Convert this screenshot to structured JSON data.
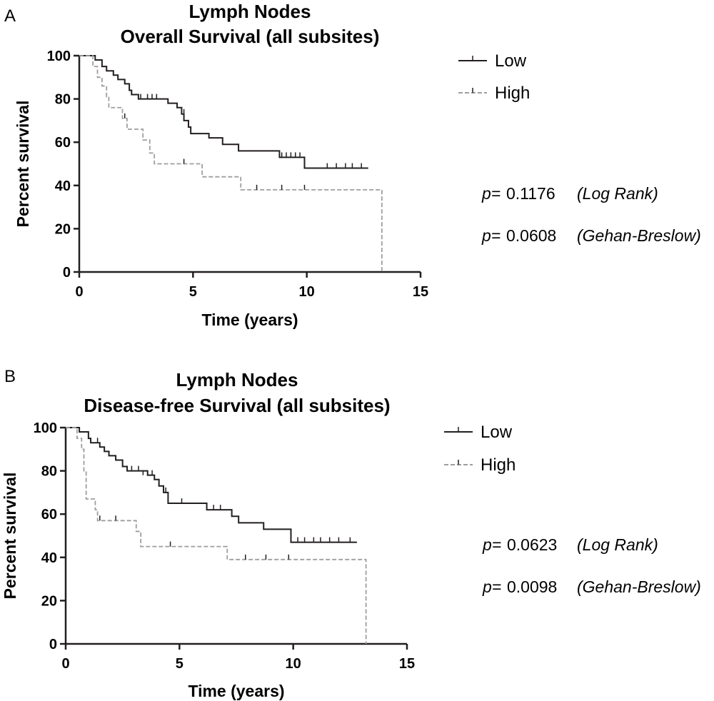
{
  "chart_data": [
    {
      "type": "line",
      "panel_label": "A",
      "title": [
        "Lymph Nodes",
        "Overall Survival (all subsites)"
      ],
      "xlabel": "Time (years)",
      "ylabel": "Percent survival",
      "xlim": [
        0,
        15
      ],
      "ylim": [
        0,
        100
      ],
      "xticks": [
        "0",
        "5",
        "10",
        "15"
      ],
      "yticks": [
        "0",
        "20",
        "40",
        "60",
        "80",
        "100"
      ],
      "legend_position": "top-right",
      "series": [
        {
          "name": "Low",
          "style": "solid",
          "color": "#231f20",
          "steps": [
            [
              0,
              100
            ],
            [
              0.7,
              98
            ],
            [
              1,
              95
            ],
            [
              1.2,
              93
            ],
            [
              1.5,
              91
            ],
            [
              1.7,
              89
            ],
            [
              2,
              87
            ],
            [
              2.2,
              84
            ],
            [
              2.3,
              82
            ],
            [
              2.6,
              80
            ],
            [
              3.5,
              80
            ],
            [
              3.9,
              78
            ],
            [
              4.3,
              76
            ],
            [
              4.5,
              73
            ],
            [
              4.6,
              70
            ],
            [
              4.8,
              67
            ],
            [
              4.9,
              64
            ],
            [
              5.7,
              62
            ],
            [
              6.3,
              59
            ],
            [
              7,
              56
            ],
            [
              8.8,
              53
            ],
            [
              9.9,
              48
            ],
            [
              12.7,
              48
            ]
          ],
          "censored": [
            [
              2.7,
              80
            ],
            [
              3,
              80
            ],
            [
              3.2,
              80
            ],
            [
              3.4,
              80
            ],
            [
              4.6,
              73
            ],
            [
              8.9,
              53
            ],
            [
              9.1,
              53
            ],
            [
              9.3,
              53
            ],
            [
              9.5,
              53
            ],
            [
              9.7,
              53
            ],
            [
              10.9,
              48
            ],
            [
              11.3,
              48
            ],
            [
              11.7,
              48
            ],
            [
              12,
              48
            ],
            [
              12.4,
              48
            ]
          ]
        },
        {
          "name": "High",
          "style": "dashed",
          "color": "#9e9e9e",
          "steps": [
            [
              0,
              100
            ],
            [
              0.6,
              95
            ],
            [
              0.8,
              90
            ],
            [
              1,
              86
            ],
            [
              1.2,
              81
            ],
            [
              1.3,
              76
            ],
            [
              1.9,
              71
            ],
            [
              2.1,
              66
            ],
            [
              2.8,
              61
            ],
            [
              3.1,
              55
            ],
            [
              3.3,
              50
            ],
            [
              5.4,
              44
            ],
            [
              7.1,
              38
            ],
            [
              13.3,
              38
            ],
            [
              13.3,
              0
            ]
          ],
          "censored": [
            [
              2,
              71
            ],
            [
              4.6,
              50
            ],
            [
              7.8,
              38
            ],
            [
              8.9,
              38
            ],
            [
              9.9,
              38
            ]
          ]
        }
      ],
      "annotations": [
        {
          "p_label": "p=",
          "value": "0.1176",
          "test": "(Log Rank)"
        },
        {
          "p_label": "p=",
          "value": "0.0608",
          "test": "(Gehan-Breslow)"
        }
      ]
    },
    {
      "type": "line",
      "panel_label": "B",
      "title": [
        "Lymph Nodes",
        "Disease-free Survival (all subsites)"
      ],
      "xlabel": "Time (years)",
      "ylabel": "Percent survival",
      "xlim": [
        0,
        15
      ],
      "ylim": [
        0,
        100
      ],
      "xticks": [
        "0",
        "5",
        "10",
        "15"
      ],
      "yticks": [
        "0",
        "20",
        "40",
        "60",
        "80",
        "100"
      ],
      "legend_position": "top-right",
      "series": [
        {
          "name": "Low",
          "style": "solid",
          "color": "#231f20",
          "steps": [
            [
              0,
              100
            ],
            [
              0.6,
              98
            ],
            [
              1,
              95
            ],
            [
              1.1,
              93
            ],
            [
              1.5,
              91
            ],
            [
              1.7,
              89
            ],
            [
              1.9,
              87
            ],
            [
              2.2,
              85
            ],
            [
              2.5,
              82
            ],
            [
              2.7,
              80
            ],
            [
              3.6,
              78
            ],
            [
              3.9,
              76
            ],
            [
              4.1,
              73
            ],
            [
              4.3,
              70
            ],
            [
              4.5,
              65
            ],
            [
              6.2,
              62
            ],
            [
              7.3,
              59
            ],
            [
              7.6,
              56
            ],
            [
              8.7,
              53
            ],
            [
              9.9,
              47
            ],
            [
              12.8,
              47
            ]
          ],
          "censored": [
            [
              1.4,
              93
            ],
            [
              2.9,
              80
            ],
            [
              3.2,
              80
            ],
            [
              3.4,
              78
            ],
            [
              3.8,
              78
            ],
            [
              4.4,
              70
            ],
            [
              5.1,
              65
            ],
            [
              6.5,
              62
            ],
            [
              6.8,
              62
            ],
            [
              10.2,
              47
            ],
            [
              10.5,
              47
            ],
            [
              10.9,
              47
            ],
            [
              11.2,
              47
            ],
            [
              11.6,
              47
            ],
            [
              12,
              47
            ],
            [
              12.5,
              47
            ]
          ]
        },
        {
          "name": "High",
          "style": "dashed",
          "color": "#9e9e9e",
          "steps": [
            [
              0,
              100
            ],
            [
              0.5,
              95
            ],
            [
              0.7,
              90
            ],
            [
              0.8,
              80
            ],
            [
              0.9,
              67
            ],
            [
              1.3,
              62
            ],
            [
              1.4,
              57
            ],
            [
              3.1,
              52
            ],
            [
              3.3,
              45
            ],
            [
              7.1,
              39
            ],
            [
              13.2,
              39
            ],
            [
              13.2,
              0
            ]
          ],
          "censored": [
            [
              1.5,
              57
            ],
            [
              2.2,
              57
            ],
            [
              4.6,
              45
            ],
            [
              7.9,
              39
            ],
            [
              8.8,
              39
            ],
            [
              9.8,
              39
            ]
          ]
        }
      ],
      "annotations": [
        {
          "p_label": "p=",
          "value": "0.0623",
          "test": "(Log Rank)"
        },
        {
          "p_label": "p=",
          "value": "0.0098",
          "test": "(Gehan-Breslow)"
        }
      ]
    }
  ]
}
